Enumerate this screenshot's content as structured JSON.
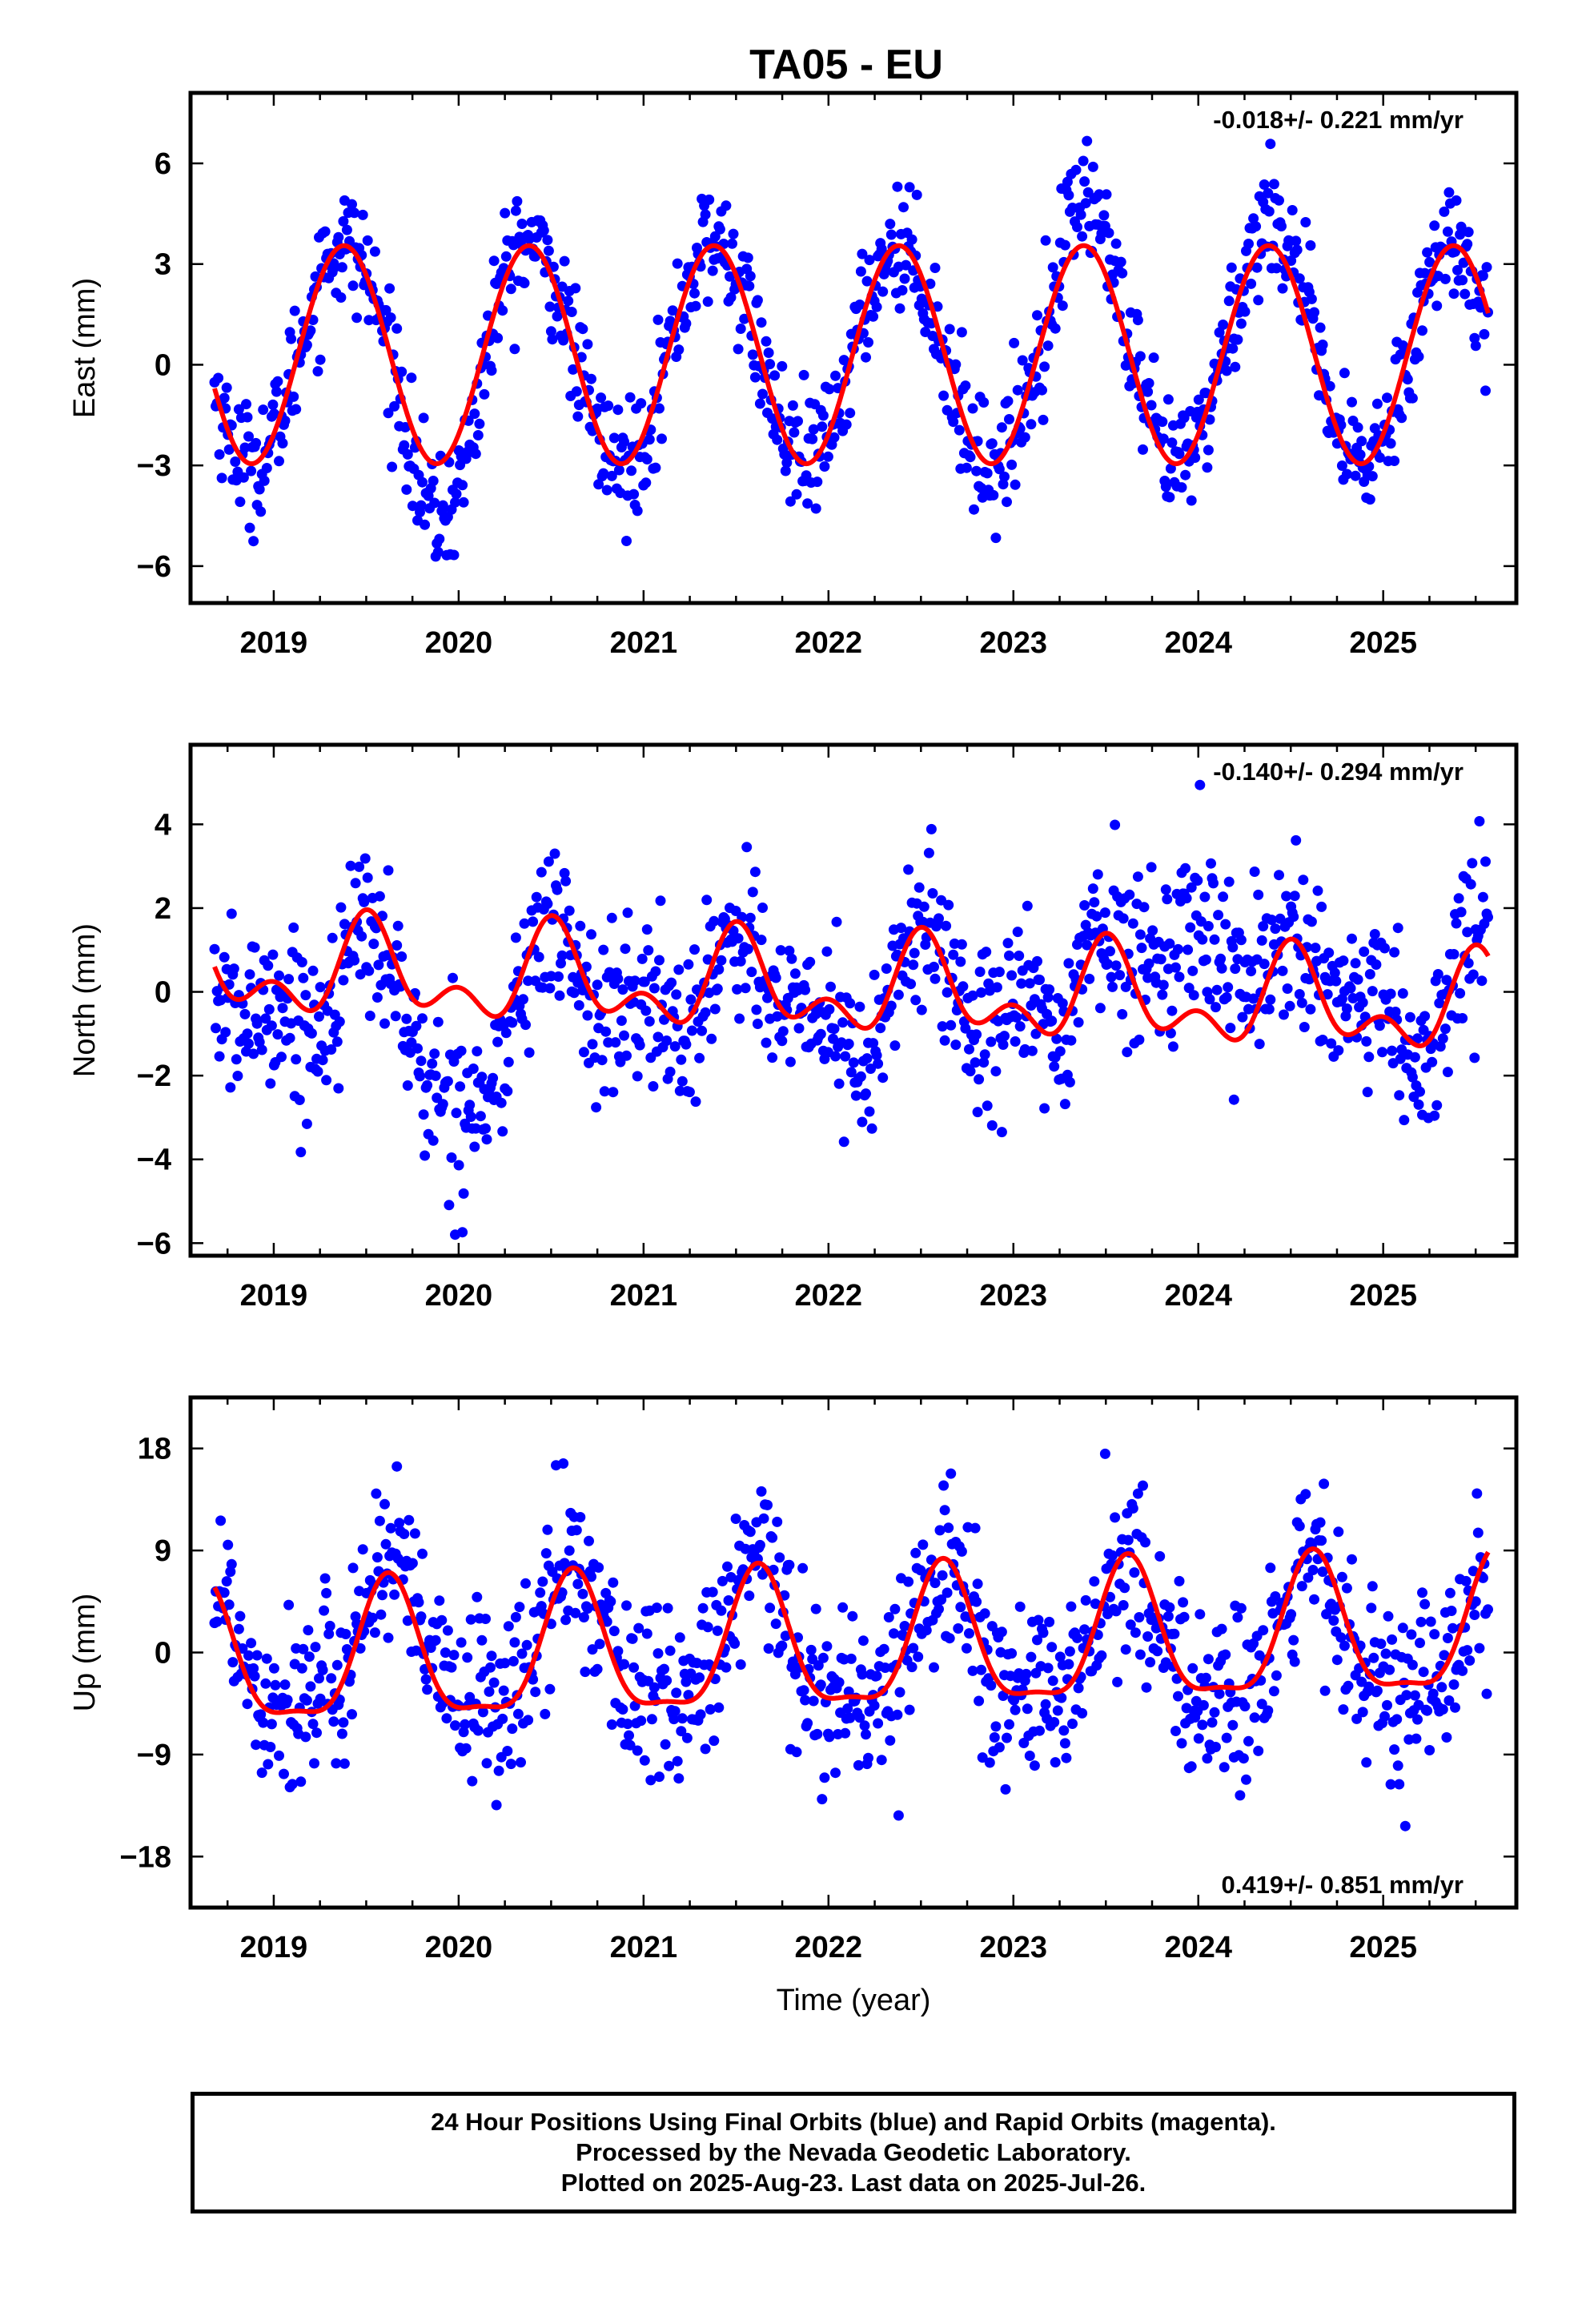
{
  "title": "TA05 - EU",
  "footer": {
    "line1": "24 Hour Positions Using Final Orbits (blue) and Rapid Orbits (magenta).",
    "line2": "Processed by the Nevada Geodetic Laboratory.",
    "line3": "Plotted on 2025-Aug-23. Last data on 2025-Jul-26."
  },
  "chart_data": [
    {
      "type": "scatter",
      "panel": "east",
      "ylabel": "East (mm)",
      "xlabel": "",
      "xlim": [
        2018.55,
        2025.72
      ],
      "ylim": [
        -7.1,
        8.1
      ],
      "xticks": [
        "2019",
        "2020",
        "2021",
        "2022",
        "2023",
        "2024",
        "2025"
      ],
      "yticks": [
        "6",
        "3",
        "0",
        "-3",
        "-6"
      ],
      "ytick_values": [
        6,
        3,
        0,
        -3,
        -6
      ],
      "rate_text": "-0.018+/- 0.221 mm/yr",
      "rate_position": "top-right",
      "series": [
        {
          "kind": "points",
          "color": "#0000ff",
          "first_epoch": 2018.68,
          "last_epoch": 2025.57,
          "fit": {
            "mean": 0.3,
            "annual_amp": 3.3,
            "annual_peak": 0.38,
            "semiannual_amp": 0.0,
            "semiannual_peak": 0.0
          },
          "noise_sd": 0.9,
          "seasonal_scatter": [
            {
              "center": 2019.93,
              "halfwidth": 0.25,
              "offset": -1.6
            },
            {
              "center": 2023.4,
              "halfwidth": 0.2,
              "offset": 1.4
            },
            {
              "center": 2024.45,
              "halfwidth": 0.2,
              "offset": 0.9
            }
          ]
        },
        {
          "kind": "model",
          "color": "#ff0000",
          "from": 2018.68,
          "to": 2025.57,
          "fit": {
            "mean": 0.3,
            "annual_amp": 3.25,
            "annual_peak": 0.38,
            "semiannual_amp": 0.0,
            "semiannual_peak": 0.0
          }
        }
      ]
    },
    {
      "type": "scatter",
      "panel": "north",
      "ylabel": "North (mm)",
      "xlabel": "",
      "xlim": [
        2018.55,
        2025.72
      ],
      "ylim": [
        -6.3,
        5.9
      ],
      "xticks": [
        "2019",
        "2020",
        "2021",
        "2022",
        "2023",
        "2024",
        "2025"
      ],
      "yticks": [
        "4",
        "2",
        "0",
        "-2",
        "-4",
        "-6"
      ],
      "ytick_values": [
        4,
        2,
        0,
        -2,
        -4,
        -6
      ],
      "rate_text": "-0.140+/- 0.294 mm/yr",
      "rate_position": "top-right",
      "series": [
        {
          "kind": "points",
          "color": "#0000ff",
          "first_epoch": 2018.68,
          "last_epoch": 2025.57,
          "fit": {
            "mean": 0.0,
            "annual_amp": 0.9,
            "annual_peak": 0.52,
            "semiannual_amp": 0.7,
            "semiannual_peak": 0.5
          },
          "noise_sd": 1.0,
          "seasonal_scatter": [
            {
              "center": 2020.0,
              "halfwidth": 0.3,
              "offset": -2.3
            },
            {
              "center": 2022.15,
              "halfwidth": 0.2,
              "offset": -1.0
            },
            {
              "center": 2024.0,
              "halfwidth": 0.4,
              "offset": 2.0
            },
            {
              "center": 2025.2,
              "halfwidth": 0.2,
              "offset": -0.9
            }
          ]
        },
        {
          "kind": "model",
          "color": "#ff0000",
          "from": 2018.68,
          "to": 2025.57,
          "fit": {
            "mean": 0.05,
            "annual_amp": 0.9,
            "annual_peak": 0.52,
            "semiannual_amp": 0.65,
            "semiannual_peak": 0.5
          },
          "trend_mm_per_yr": -0.14
        }
      ]
    },
    {
      "type": "scatter",
      "panel": "up",
      "ylabel": "Up (mm)",
      "xlabel": "Time (year)",
      "xlim": [
        2018.55,
        2025.72
      ],
      "ylim": [
        -22.5,
        22.5
      ],
      "xticks": [
        "2019",
        "2020",
        "2021",
        "2022",
        "2023",
        "2024",
        "2025"
      ],
      "yticks": [
        "18",
        "9",
        "0",
        "-9",
        "-18"
      ],
      "ytick_values": [
        18,
        9,
        0,
        -9,
        -18
      ],
      "rate_text": "0.419+/- 0.851 mm/yr",
      "rate_position": "bottom-right",
      "series": [
        {
          "kind": "points",
          "color": "#0000ff",
          "first_epoch": 2018.68,
          "last_epoch": 2025.57,
          "fit": {
            "mean": 0.3,
            "annual_amp": 6.0,
            "annual_peak": 0.62,
            "semiannual_amp": 1.8,
            "semiannual_peak": 0.62
          },
          "noise_sd": 4.0,
          "seasonal_scatter": []
        },
        {
          "kind": "model",
          "color": "#ff0000",
          "from": 2018.68,
          "to": 2025.57,
          "fit": {
            "mean": 0.3,
            "annual_amp": 6.0,
            "annual_peak": 0.62,
            "semiannual_amp": 1.8,
            "semiannual_peak": 0.62
          },
          "trend_mm_per_yr": 0.419
        }
      ]
    }
  ]
}
